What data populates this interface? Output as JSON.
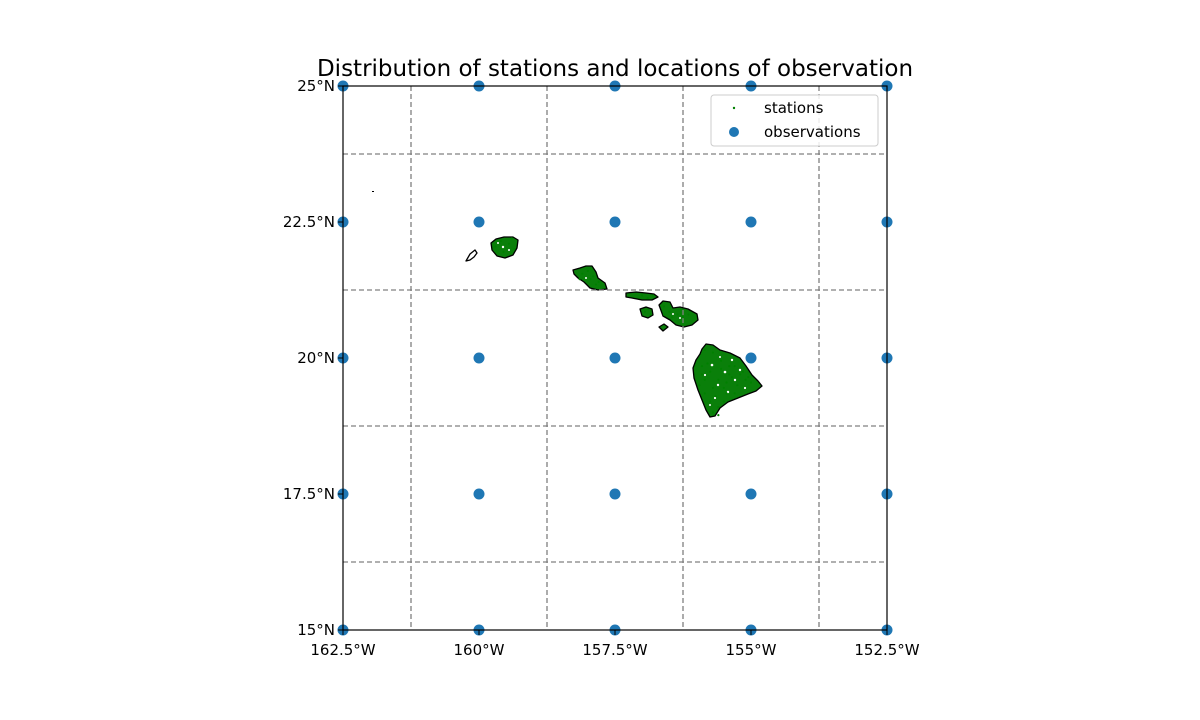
{
  "title": "Distribution of stations and locations of observation",
  "chart_data": {
    "type": "scatter",
    "title": "Distribution of stations and locations of observation",
    "xlim": [
      -162.5,
      -152.5
    ],
    "ylim": [
      15,
      25
    ],
    "x_ticks": [
      -162.5,
      -160,
      -157.5,
      -155,
      -152.5
    ],
    "x_tick_labels": [
      "162.5°W",
      "160°W",
      "157.5°W",
      "155°W",
      "152.5°W"
    ],
    "y_ticks": [
      15,
      17.5,
      20,
      22.5,
      25
    ],
    "y_tick_labels": [
      "15°N",
      "17.5°N",
      "20°N",
      "22.5°N",
      "25°N"
    ],
    "gridlines": {
      "x": [
        -161.25,
        -158.75,
        -156.25,
        -153.75
      ],
      "y": [
        16.25,
        18.75,
        21.25,
        23.75
      ],
      "style": "dashed",
      "color": "#808080"
    },
    "legend_placement": "top-right",
    "legend": [
      {
        "label": "stations",
        "color": "#008000",
        "marker": "small-dot"
      },
      {
        "label": "observations",
        "color": "#1f77b4",
        "marker": "circle"
      }
    ],
    "series": [
      {
        "name": "observations",
        "color": "#1f77b4",
        "points": [
          [
            -162.5,
            25
          ],
          [
            -160,
            25
          ],
          [
            -157.5,
            25
          ],
          [
            -155,
            25
          ],
          [
            -152.5,
            25
          ],
          [
            -162.5,
            22.5
          ],
          [
            -160,
            22.5
          ],
          [
            -157.5,
            22.5
          ],
          [
            -155,
            22.5
          ],
          [
            -152.5,
            22.5
          ],
          [
            -162.5,
            20
          ],
          [
            -160,
            20
          ],
          [
            -157.5,
            20
          ],
          [
            -155,
            20
          ],
          [
            -152.5,
            20
          ],
          [
            -162.5,
            17.5
          ],
          [
            -160,
            17.5
          ],
          [
            -157.5,
            17.5
          ],
          [
            -155,
            17.5
          ],
          [
            -152.5,
            17.5
          ],
          [
            -162.5,
            15
          ],
          [
            -160,
            15
          ],
          [
            -157.5,
            15
          ],
          [
            -155,
            15
          ],
          [
            -152.5,
            15
          ]
        ]
      },
      {
        "name": "stations",
        "color": "#008000",
        "points": [
          [
            -159.6,
            22.15
          ],
          [
            -159.45,
            22.1
          ],
          [
            -159.35,
            22.0
          ],
          [
            -159.55,
            21.95
          ],
          [
            -159.7,
            22.05
          ],
          [
            -159.4,
            22.2
          ],
          [
            -158.1,
            21.55
          ],
          [
            -157.95,
            21.45
          ],
          [
            -157.85,
            21.35
          ],
          [
            -158.0,
            21.6
          ],
          [
            -157.9,
            21.5
          ],
          [
            -158.15,
            21.45
          ],
          [
            -157.8,
            21.4
          ],
          [
            -157.0,
            21.15
          ],
          [
            -156.8,
            21.15
          ],
          [
            -156.9,
            21.1
          ],
          [
            -156.95,
            20.85
          ],
          [
            -156.85,
            20.8
          ],
          [
            -156.6,
            20.95
          ],
          [
            -156.5,
            20.85
          ],
          [
            -156.35,
            20.8
          ],
          [
            -156.25,
            20.75
          ],
          [
            -156.15,
            20.8
          ],
          [
            -156.45,
            20.75
          ],
          [
            -156.6,
            20.8
          ],
          [
            -155.85,
            20.15
          ],
          [
            -155.7,
            20.1
          ],
          [
            -155.55,
            19.95
          ],
          [
            -155.4,
            19.85
          ],
          [
            -155.2,
            19.7
          ],
          [
            -155.1,
            19.6
          ],
          [
            -155.0,
            19.55
          ],
          [
            -155.9,
            19.7
          ],
          [
            -155.95,
            19.5
          ],
          [
            -155.85,
            19.35
          ],
          [
            -155.75,
            19.2
          ],
          [
            -155.6,
            19.1
          ],
          [
            -155.5,
            19.2
          ],
          [
            -155.3,
            19.35
          ],
          [
            -155.6,
            19.6
          ],
          [
            -155.45,
            19.55
          ],
          [
            -155.7,
            19.45
          ],
          [
            -155.35,
            19.65
          ],
          [
            -155.55,
            19.8
          ],
          [
            -155.8,
            19.9
          ],
          [
            -155.65,
            19.3
          ],
          [
            -155.25,
            19.5
          ],
          [
            -155.15,
            19.75
          ],
          [
            -155.85,
            19.6
          ],
          [
            -155.45,
            19.35
          ],
          [
            -155.7,
            19.0
          ],
          [
            -155.6,
            18.95
          ],
          [
            -155.5,
            19.45
          ],
          [
            -155.3,
            19.85
          ],
          [
            -155.4,
            19.7
          ],
          [
            -155.05,
            19.65
          ],
          [
            -155.75,
            19.75
          ],
          [
            -155.9,
            19.85
          ]
        ]
      }
    ]
  }
}
